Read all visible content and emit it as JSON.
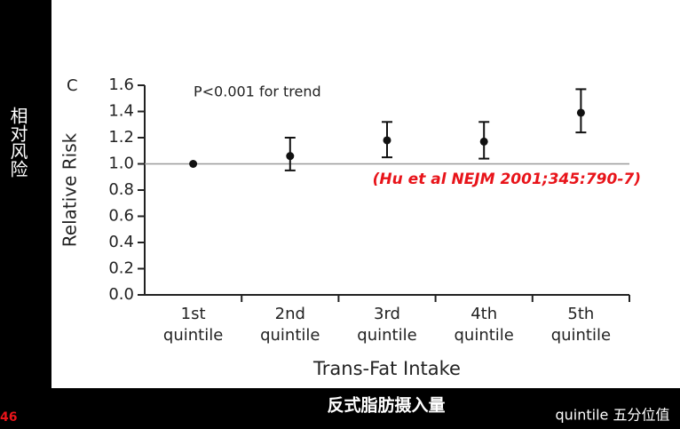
{
  "chart_data": {
    "type": "errorbar",
    "panel_label": "C",
    "annotation": "P<0.001 for trend",
    "citation": "(Hu et al NEJM 2001;345:790-7)",
    "xlabel": "Trans-Fat Intake",
    "ylabel": "Relative Risk",
    "categories": [
      "1st quintile",
      "2nd quintile",
      "3rd quintile",
      "4th quintile",
      "5th quintile"
    ],
    "values": [
      1.0,
      1.06,
      1.18,
      1.17,
      1.39
    ],
    "lower": [
      null,
      0.95,
      1.05,
      1.04,
      1.24
    ],
    "upper": [
      null,
      1.2,
      1.32,
      1.32,
      1.57
    ],
    "reference_line": 1,
    "color": "#111111",
    "ylim": [
      0,
      1.6
    ],
    "yticks": [
      {
        "value": 0,
        "label": "0.0"
      },
      0.2,
      0.4,
      0.6,
      0.8,
      {
        "value": 1,
        "label": "1.0"
      },
      1.2,
      1.4,
      1.6
    ]
  },
  "side_label": "相对风险",
  "bottom_caption": "反式脂肪摄入量",
  "footnote": "quintile 五分位值",
  "slide_number": "46"
}
